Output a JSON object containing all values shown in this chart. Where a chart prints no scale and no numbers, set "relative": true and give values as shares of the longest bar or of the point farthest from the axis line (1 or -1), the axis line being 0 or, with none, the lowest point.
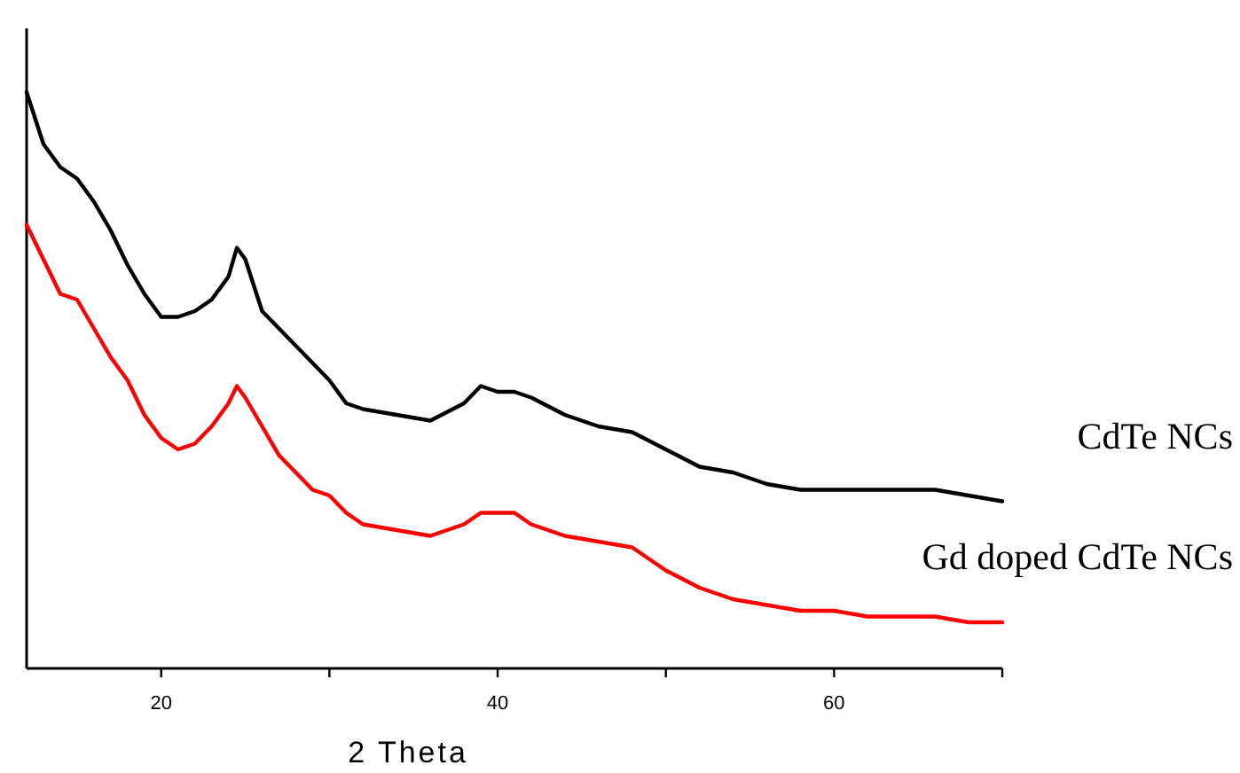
{
  "chart_data": {
    "type": "line",
    "relative": true,
    "xlabel": "2 Theta",
    "xlim": [
      12,
      70
    ],
    "xticks": [
      20,
      {
        "value": 30,
        "label": null
      },
      40,
      {
        "value": 50,
        "label": null
      },
      60,
      {
        "value": 70,
        "label": null
      }
    ],
    "grid": false,
    "legend": false,
    "marker": "none",
    "line_style": "solid",
    "x": [
      12,
      13,
      14,
      15,
      16,
      17,
      18,
      19,
      20,
      21,
      22,
      23,
      24,
      24.5,
      25,
      26,
      27,
      28,
      29,
      30,
      31,
      32,
      34,
      36,
      38,
      39,
      40,
      41,
      42,
      44,
      46,
      48,
      50,
      52,
      54,
      56,
      58,
      60,
      62,
      64,
      66,
      68,
      70
    ],
    "series": [
      {
        "name": "CdTe NCs",
        "color": "#000000",
        "values": [
          1.0,
          0.91,
          0.87,
          0.85,
          0.81,
          0.76,
          0.7,
          0.65,
          0.61,
          0.61,
          0.62,
          0.64,
          0.68,
          0.73,
          0.71,
          0.62,
          0.59,
          0.56,
          0.53,
          0.5,
          0.46,
          0.45,
          0.44,
          0.43,
          0.46,
          0.49,
          0.48,
          0.48,
          0.47,
          0.44,
          0.42,
          0.41,
          0.38,
          0.35,
          0.34,
          0.32,
          0.31,
          0.31,
          0.31,
          0.31,
          0.31,
          0.3,
          0.29
        ]
      },
      {
        "name": "Gd doped CdTe NCs",
        "color": "#ff0000",
        "values": [
          0.77,
          0.71,
          0.65,
          0.64,
          0.59,
          0.54,
          0.5,
          0.44,
          0.4,
          0.38,
          0.39,
          0.42,
          0.46,
          0.49,
          0.47,
          0.42,
          0.37,
          0.34,
          0.31,
          0.3,
          0.27,
          0.25,
          0.24,
          0.23,
          0.25,
          0.27,
          0.27,
          0.27,
          0.25,
          0.23,
          0.22,
          0.21,
          0.17,
          0.14,
          0.12,
          0.11,
          0.1,
          0.1,
          0.09,
          0.09,
          0.09,
          0.08,
          0.08
        ]
      }
    ]
  }
}
